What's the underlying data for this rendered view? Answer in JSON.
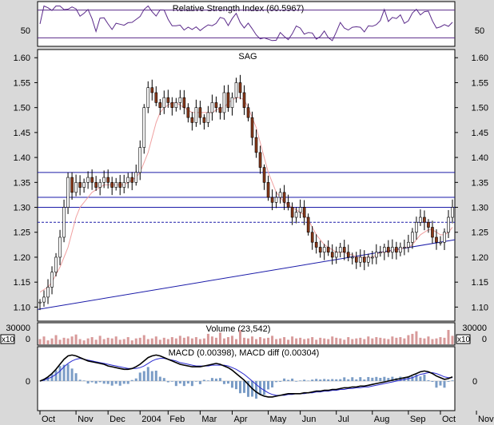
{
  "chart_data": [
    {
      "type": "line",
      "panel": "rsi",
      "title": "Relative Strength Index (60.5967)",
      "y_ticks": [
        "50"
      ],
      "reference_lines": [
        70,
        30
      ],
      "ylim": [
        20,
        80
      ],
      "colors": {
        "line": "#5a2a8a",
        "reference": "#5a2a8a"
      }
    },
    {
      "type": "line",
      "panel": "price",
      "title": "SAG",
      "ylim": [
        1.075,
        1.61
      ],
      "y_ticks": [
        "1.60",
        "1.55",
        "1.50",
        "1.45",
        "1.40",
        "1.35",
        "1.30",
        "1.25",
        "1.20",
        "1.15",
        "1.10"
      ],
      "horizontal_lines": [
        1.37,
        1.32,
        1.3
      ],
      "dashed_line": 1.27,
      "trendline": {
        "x": [
          0,
          120
        ],
        "y": [
          1.1,
          1.235
        ]
      },
      "x_tick_labels": [
        "Oct",
        "Nov",
        "Dec",
        "2004",
        "Feb",
        "Mar",
        "Apr",
        "May",
        "Jun",
        "Jul",
        "Aug",
        "Sep",
        "Oct",
        "Nov"
      ],
      "x_tick_weeks": [
        0,
        9,
        17,
        25,
        32,
        40,
        48,
        57,
        65,
        74,
        83,
        92,
        100,
        109
      ],
      "series": [
        {
          "style": "candles",
          "values": [
            1.11,
            1.12,
            1.14,
            1.17,
            1.2,
            1.24,
            1.3,
            1.36,
            1.33,
            1.35,
            1.34,
            1.35,
            1.36,
            1.35,
            1.34,
            1.35,
            1.36,
            1.35,
            1.34,
            1.35,
            1.34,
            1.35,
            1.36,
            1.35,
            1.37,
            1.42,
            1.5,
            1.54,
            1.53,
            1.51,
            1.5,
            1.52,
            1.51,
            1.5,
            1.51,
            1.52,
            1.5,
            1.48,
            1.47,
            1.5,
            1.48,
            1.47,
            1.49,
            1.51,
            1.5,
            1.49,
            1.53,
            1.5,
            1.52,
            1.55,
            1.53,
            1.5,
            1.48,
            1.44,
            1.41,
            1.38,
            1.35,
            1.32,
            1.31,
            1.32,
            1.33,
            1.31,
            1.3,
            1.28,
            1.29,
            1.3,
            1.28,
            1.25,
            1.23,
            1.22,
            1.21,
            1.22,
            1.21,
            1.2,
            1.21,
            1.22,
            1.21,
            1.2,
            1.2,
            1.19,
            1.2,
            1.19,
            1.2,
            1.2,
            1.21,
            1.21,
            1.22,
            1.21,
            1.22,
            1.21,
            1.22,
            1.22,
            1.23,
            1.25,
            1.27,
            1.28,
            1.27,
            1.26,
            1.24,
            1.23,
            1.23,
            1.25,
            1.28,
            1.3
          ]
        },
        {
          "style": "moving-average",
          "values": [
            1.13,
            1.135,
            1.14,
            1.15,
            1.165,
            1.18,
            1.2,
            1.22,
            1.25,
            1.28,
            1.3,
            1.31,
            1.32,
            1.33,
            1.335,
            1.34,
            1.345,
            1.345,
            1.345,
            1.345,
            1.345,
            1.345,
            1.35,
            1.355,
            1.36,
            1.37,
            1.39,
            1.41,
            1.44,
            1.47,
            1.49,
            1.5,
            1.505,
            1.51,
            1.51,
            1.505,
            1.5,
            1.495,
            1.49,
            1.49,
            1.49,
            1.49,
            1.49,
            1.49,
            1.495,
            1.5,
            1.5,
            1.51,
            1.515,
            1.52,
            1.52,
            1.515,
            1.5,
            1.48,
            1.46,
            1.43,
            1.4,
            1.37,
            1.35,
            1.33,
            1.32,
            1.31,
            1.305,
            1.3,
            1.295,
            1.29,
            1.285,
            1.275,
            1.26,
            1.245,
            1.235,
            1.225,
            1.22,
            1.215,
            1.21,
            1.21,
            1.21,
            1.205,
            1.205,
            1.2,
            1.2,
            1.2,
            1.2,
            1.2,
            1.205,
            1.21,
            1.21,
            1.21,
            1.215,
            1.215,
            1.215,
            1.22,
            1.22,
            1.225,
            1.235,
            1.245,
            1.25,
            1.255,
            1.255,
            1.25,
            1.245,
            1.245,
            1.25,
            1.26
          ]
        }
      ],
      "colors": {
        "candle": "#000000",
        "candle_fill": "#8b3a1a",
        "ma": "#f0a0a0",
        "lines": "#1a1aa8"
      }
    },
    {
      "type": "bar",
      "panel": "volume",
      "title": "Volume (23,542)",
      "y_ticks": [
        "30000"
      ],
      "scale_label": "x10",
      "bottom_tick": "0",
      "values": [
        8,
        12,
        6,
        9,
        14,
        7,
        10,
        9,
        12,
        15,
        8,
        6,
        9,
        11,
        7,
        13,
        8,
        10,
        9,
        12,
        7,
        8,
        11,
        6,
        9,
        10,
        14,
        8,
        9,
        12,
        7,
        10,
        8,
        11,
        9,
        13,
        10,
        12,
        9,
        11,
        8,
        9,
        16,
        12,
        10,
        18,
        9,
        11,
        13,
        8,
        22,
        10,
        9,
        12,
        8,
        11,
        9,
        10,
        13,
        8,
        9,
        11,
        7,
        12,
        9,
        10,
        8,
        9,
        11,
        7,
        10,
        9,
        8,
        12,
        10,
        9,
        7,
        11,
        8,
        9,
        10,
        8,
        12,
        9,
        11,
        10,
        9,
        8,
        12,
        10,
        11,
        9,
        14,
        16,
        20,
        10,
        9,
        12,
        8,
        9,
        11,
        10,
        22,
        13
      ],
      "colors": {
        "bar": "#d89a9a"
      }
    },
    {
      "type": "line",
      "panel": "macd",
      "title": "MACD (0.00398), MACD diff (0.00304)",
      "y_ticks": [
        "0"
      ],
      "series": [
        {
          "name": "MACD",
          "values": [
            0,
            2,
            5,
            9,
            14,
            20,
            26,
            30,
            31,
            30,
            28,
            26,
            24,
            23,
            22,
            21,
            20,
            18,
            17,
            16,
            15,
            14,
            14,
            15,
            17,
            20,
            24,
            28,
            30,
            31,
            30,
            28,
            26,
            24,
            22,
            20,
            19,
            18,
            17,
            17,
            17,
            18,
            19,
            20,
            21,
            20,
            18,
            16,
            13,
            9,
            5,
            1,
            -4,
            -9,
            -13,
            -16,
            -18,
            -19,
            -19,
            -18,
            -17,
            -16,
            -15,
            -15,
            -15,
            -15,
            -14,
            -14,
            -13,
            -12,
            -12,
            -11,
            -11,
            -10,
            -10,
            -9,
            -8,
            -8,
            -7,
            -7,
            -6,
            -6,
            -5,
            -4,
            -3,
            -2,
            -1,
            0,
            1,
            2,
            3,
            4,
            5,
            7,
            9,
            11,
            12,
            11,
            9,
            6,
            4,
            2,
            3,
            5
          ]
        },
        {
          "name": "Signal",
          "values": [
            0,
            1,
            3,
            5,
            8,
            12,
            17,
            21,
            24,
            26,
            27,
            26,
            25,
            24,
            23,
            22,
            21,
            20,
            19,
            18,
            17,
            16,
            15,
            15,
            15,
            16,
            18,
            21,
            24,
            26,
            27,
            27,
            26,
            25,
            24,
            22,
            21,
            20,
            19,
            18,
            18,
            18,
            18,
            19,
            19,
            19,
            19,
            18,
            16,
            14,
            11,
            8,
            4,
            0,
            -4,
            -8,
            -11,
            -14,
            -16,
            -17,
            -17,
            -17,
            -16,
            -16,
            -15,
            -15,
            -15,
            -14,
            -14,
            -13,
            -13,
            -12,
            -12,
            -11,
            -11,
            -10,
            -10,
            -9,
            -9,
            -8,
            -8,
            -7,
            -7,
            -6,
            -5,
            -4,
            -3,
            -2,
            -1,
            0,
            1,
            2,
            3,
            4,
            6,
            8,
            9,
            10,
            10,
            9,
            7,
            5,
            4,
            4
          ]
        }
      ],
      "histogram_color": "#7a9cc6",
      "colors": {
        "macd": "#000000",
        "signal": "#2a2ad0"
      }
    }
  ]
}
